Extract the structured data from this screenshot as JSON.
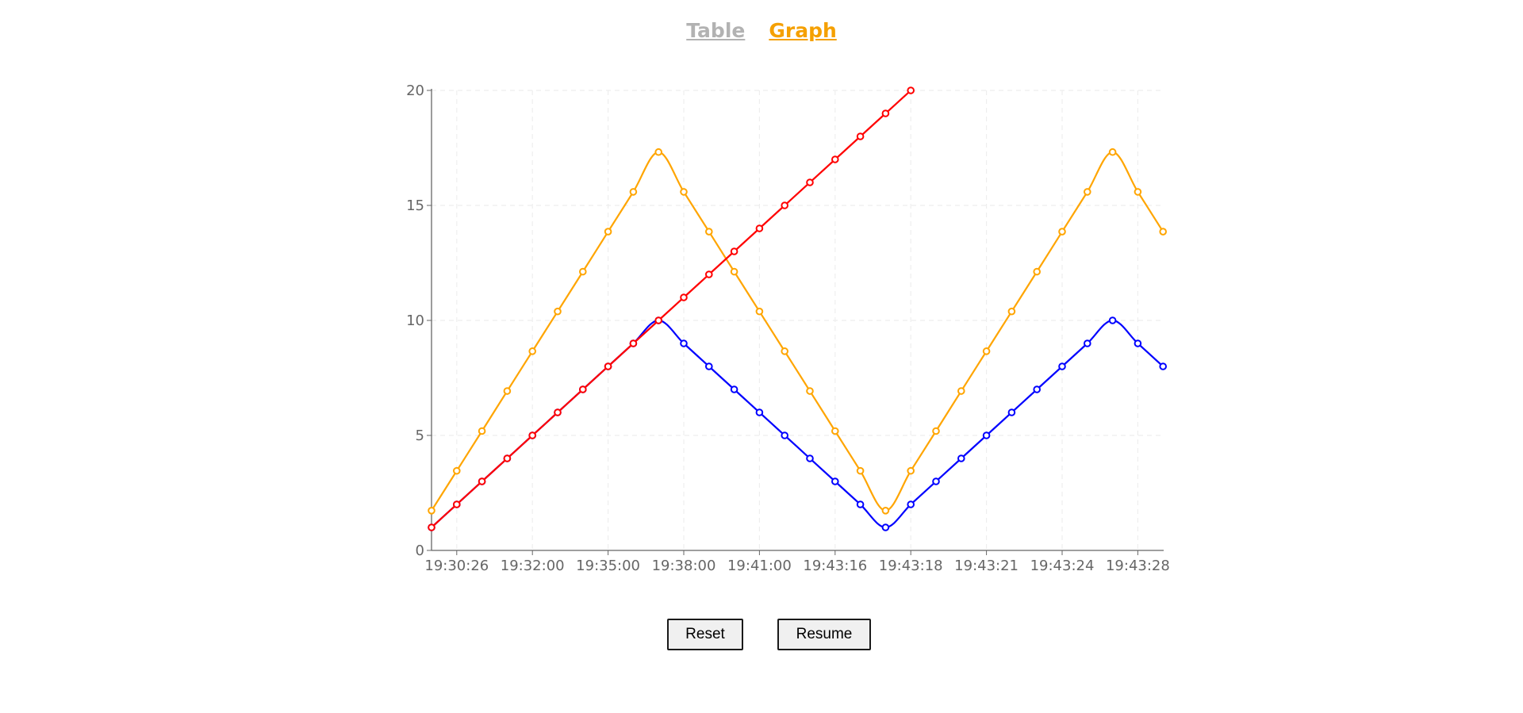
{
  "tabs": [
    {
      "label": "Table",
      "active": false
    },
    {
      "label": "Graph",
      "active": true
    }
  ],
  "colors": {
    "tab_active": "#f5a000",
    "tab_inactive": "#b2b2b2",
    "grid": "#eeeeee",
    "axis": "#666666"
  },
  "chart_data": {
    "type": "line",
    "title": "",
    "xlabel": "",
    "ylabel": "",
    "grid": true,
    "ylim": [
      0,
      20
    ],
    "yticks": [
      0,
      5,
      10,
      15,
      20
    ],
    "x_tick_labels": [
      "19:30:26",
      "19:32:00",
      "19:35:00",
      "19:38:00",
      "19:41:00",
      "19:43:16",
      "19:43:18",
      "19:43:21",
      "19:43:24",
      "19:43:28"
    ],
    "series": [
      {
        "color": "#ffa500",
        "values": [
          1.73,
          3.46,
          5.19,
          6.93,
          8.66,
          10.39,
          12.12,
          13.86,
          15.59,
          17.32,
          15.59,
          13.86,
          12.12,
          10.39,
          8.66,
          6.93,
          5.19,
          3.46,
          1.73,
          3.46,
          5.19,
          6.93,
          8.66,
          10.39,
          12.12,
          13.86,
          15.59,
          17.32,
          15.59,
          13.86
        ]
      },
      {
        "color": "#0000ff",
        "values": [
          1,
          2,
          3,
          4,
          5,
          6,
          7,
          8,
          9,
          10,
          9,
          8,
          7,
          6,
          5,
          4,
          3,
          2,
          1,
          2,
          3,
          4,
          5,
          6,
          7,
          8,
          9,
          10,
          9,
          8
        ]
      },
      {
        "color": "#ff0000",
        "values": [
          1,
          2,
          3,
          4,
          5,
          6,
          7,
          8,
          9,
          10,
          11,
          12,
          13,
          14,
          15,
          16,
          17,
          18,
          19,
          20
        ]
      }
    ]
  },
  "buttons": {
    "reset": "Reset",
    "resume": "Resume"
  }
}
